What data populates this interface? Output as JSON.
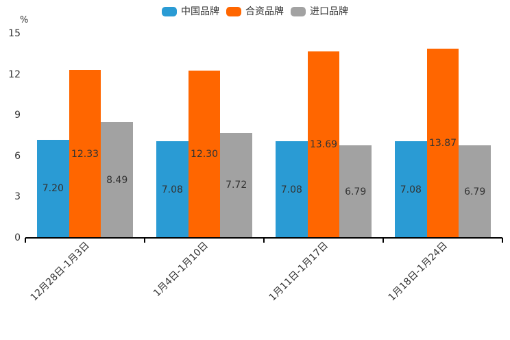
{
  "chart_data": {
    "type": "bar",
    "categories": [
      "12月28日-1月3日",
      "1月4日-1月10日",
      "1月11日-1月17日",
      "1月18日-1月24日"
    ],
    "series": [
      {
        "name": "中国品牌",
        "color": "#2A9BD4",
        "values": [
          7.2,
          7.08,
          7.08,
          7.08
        ]
      },
      {
        "name": "合资品牌",
        "color": "#FF6600",
        "values": [
          12.33,
          12.3,
          13.69,
          13.87
        ]
      },
      {
        "name": "进口品牌",
        "color": "#A2A2A2",
        "values": [
          8.49,
          7.72,
          6.79,
          6.79
        ]
      }
    ],
    "ylabel": "%",
    "yticks": [
      0,
      3,
      6,
      9,
      12,
      15
    ],
    "ylim": [
      0,
      15
    ],
    "value_label_decimals": 2,
    "legend_position": "top",
    "grid": false,
    "text_color": "#333333",
    "axis_color": "#000000"
  }
}
